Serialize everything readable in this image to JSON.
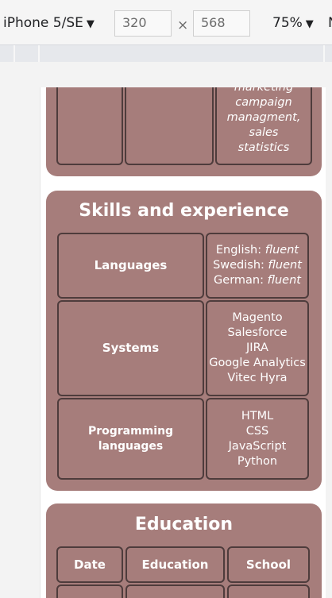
{
  "toolbar": {
    "device_label": "iPhone 5/SE",
    "width_value": "320",
    "height_value": "568",
    "times_sign": "×",
    "zoom_label": "75%",
    "overflow_label": "N"
  },
  "previous_card": {
    "partial_text": [
      "marketing",
      "campaign",
      "managment,",
      "sales",
      "statistics"
    ]
  },
  "skills": {
    "title": "Skills and experience",
    "rows": [
      {
        "label": "Languages",
        "items": [
          {
            "lang": "English:",
            "level": "fluent"
          },
          {
            "lang": "Swedish:",
            "level": "fluent"
          },
          {
            "lang": "German:",
            "level": "fluent"
          }
        ]
      },
      {
        "label": "Systems",
        "items": [
          "Magento",
          "Salesforce",
          "JIRA",
          "Google Analytics",
          "Vitec Hyra"
        ]
      },
      {
        "label": "Programming languages",
        "items": [
          "HTML",
          "CSS",
          "JavaScript",
          "Python"
        ]
      }
    ]
  },
  "education": {
    "title": "Education",
    "headers": [
      "Date",
      "Education",
      "School"
    ]
  },
  "colors": {
    "card_bg": "#a67d7b",
    "cell_border": "#4e3c3c"
  }
}
